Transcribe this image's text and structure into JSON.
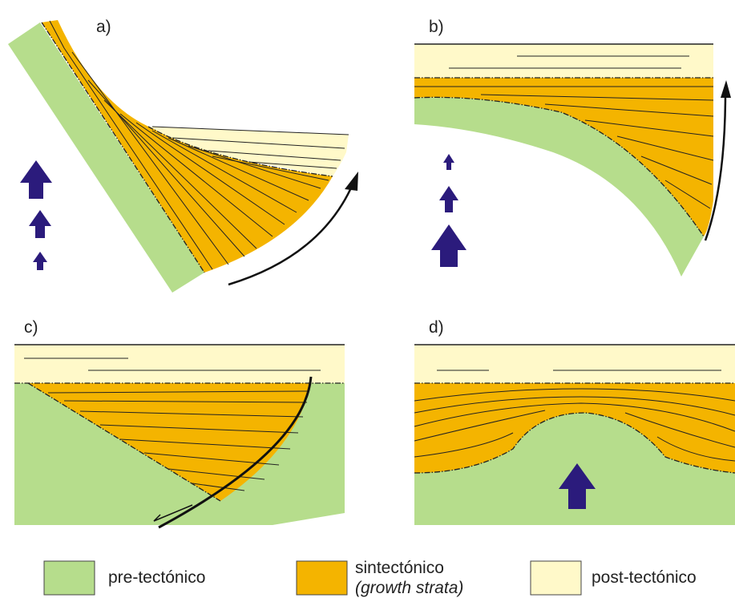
{
  "panels": [
    {
      "label": "a)"
    },
    {
      "label": "b)"
    },
    {
      "label": "c)"
    },
    {
      "label": "d)"
    }
  ],
  "legend": [
    {
      "label": "pre-tectónico"
    },
    {
      "label": "sintectónico",
      "note": "(growth strata)"
    },
    {
      "label": "post-tectónico"
    }
  ]
}
